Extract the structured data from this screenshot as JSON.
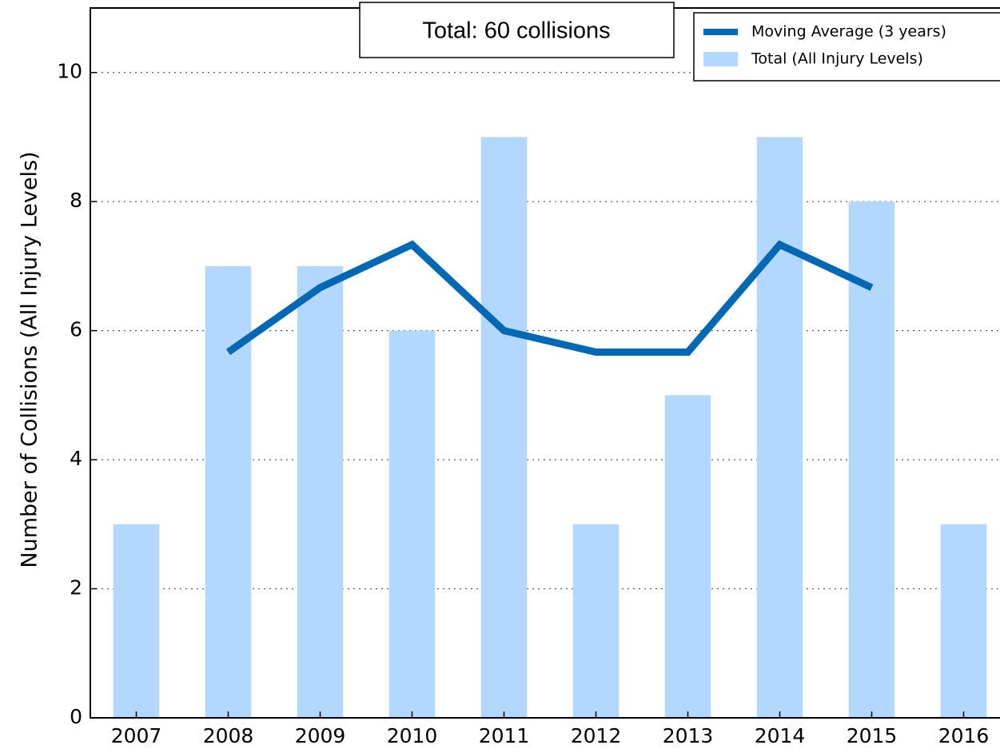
{
  "chart_data": {
    "type": "bar",
    "annotation": "Total: 60 collisions",
    "y_label": "Number of Collisions (All Injury Levels)",
    "categories": [
      "2007",
      "2008",
      "2009",
      "2010",
      "2011",
      "2012",
      "2013",
      "2014",
      "2015",
      "2016"
    ],
    "series": [
      {
        "name": "Moving Average (3 years)",
        "type": "line",
        "color": "#0068b4",
        "values": [
          null,
          5.667,
          6.667,
          7.333,
          6,
          5.667,
          5.667,
          7.333,
          6.667,
          null
        ]
      },
      {
        "name": "Total (All Injury Levels)",
        "type": "bar",
        "color": "#b3d8ff",
        "values": [
          3,
          7,
          7,
          6,
          9,
          3,
          5,
          9,
          8,
          3
        ]
      }
    ],
    "ylim": [
      0,
      11
    ],
    "yticks": [
      0,
      2,
      4,
      6,
      8,
      10
    ],
    "grid": true,
    "legend": "upper right"
  }
}
